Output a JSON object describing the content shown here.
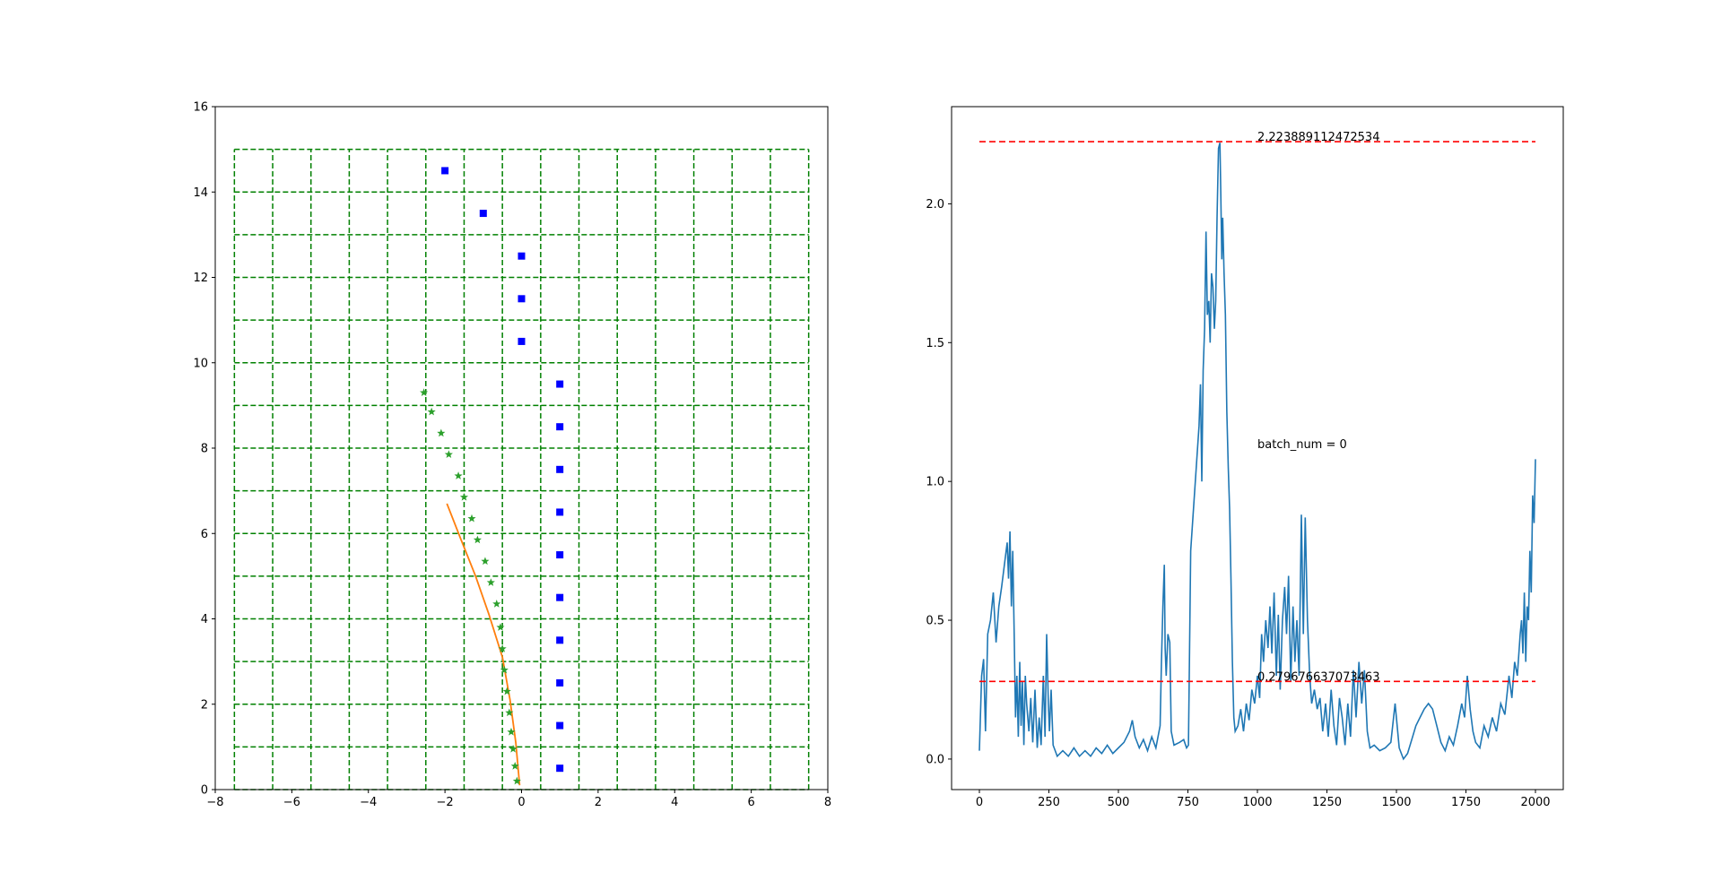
{
  "chart_data": [
    {
      "type": "scatter",
      "xlim": [
        -8,
        8
      ],
      "ylim": [
        0,
        16
      ],
      "x_ticks": [
        -8,
        -6,
        -4,
        -2,
        0,
        2,
        4,
        6,
        8
      ],
      "y_ticks": [
        0,
        2,
        4,
        6,
        8,
        10,
        12,
        14,
        16
      ],
      "x_tick_labels": [
        "−8",
        "−6",
        "−4",
        "−2",
        "0",
        "2",
        "4",
        "6",
        "8"
      ],
      "y_tick_labels": [
        "0",
        "2",
        "4",
        "6",
        "8",
        "10",
        "12",
        "14",
        "16"
      ],
      "grid": {
        "style": "dashed",
        "color": "#008000",
        "x_lines": [
          -7.5,
          -6.5,
          -5.5,
          -4.5,
          -3.5,
          -2.5,
          -1.5,
          -0.5,
          0.5,
          1.5,
          2.5,
          3.5,
          4.5,
          5.5,
          6.5,
          7.5
        ],
        "y_lines": [
          0,
          1,
          2,
          3,
          4,
          5,
          6,
          7,
          8,
          9,
          10,
          11,
          12,
          13,
          14,
          15
        ]
      },
      "square_points": {
        "color": "#0000ff",
        "marker": "square",
        "points": [
          [
            -2,
            14.5
          ],
          [
            -1,
            13.5
          ],
          [
            0,
            12.5
          ],
          [
            0,
            11.5
          ],
          [
            0,
            10.5
          ],
          [
            1,
            9.5
          ],
          [
            1,
            8.5
          ],
          [
            1,
            7.5
          ],
          [
            1,
            6.5
          ],
          [
            1,
            5.5
          ],
          [
            1,
            4.5
          ],
          [
            1,
            3.5
          ],
          [
            1,
            2.5
          ],
          [
            1,
            1.5
          ],
          [
            1,
            0.5
          ]
        ]
      },
      "star_points": {
        "color": "#2ca02c",
        "marker": "star",
        "points": [
          [
            -2.55,
            9.3
          ],
          [
            -2.35,
            8.85
          ],
          [
            -2.1,
            8.35
          ],
          [
            -1.9,
            7.85
          ],
          [
            -1.65,
            7.35
          ],
          [
            -1.5,
            6.85
          ],
          [
            -1.3,
            6.35
          ],
          [
            -1.15,
            5.85
          ],
          [
            -0.95,
            5.35
          ],
          [
            -0.8,
            4.85
          ],
          [
            -0.65,
            4.35
          ],
          [
            -0.55,
            3.8
          ],
          [
            -0.5,
            3.3
          ],
          [
            -0.45,
            2.8
          ],
          [
            -0.38,
            2.3
          ],
          [
            -0.32,
            1.8
          ],
          [
            -0.27,
            1.35
          ],
          [
            -0.22,
            0.95
          ],
          [
            -0.17,
            0.55
          ],
          [
            -0.12,
            0.2
          ]
        ]
      },
      "line": {
        "color": "#ff7f0e",
        "points": [
          [
            -1.95,
            6.7
          ],
          [
            -1.6,
            5.9
          ],
          [
            -1.2,
            5.0
          ],
          [
            -0.85,
            4.1
          ],
          [
            -0.5,
            3.1
          ],
          [
            -0.3,
            2.1
          ],
          [
            -0.15,
            1.1
          ],
          [
            -0.05,
            0.1
          ]
        ]
      }
    },
    {
      "type": "line",
      "xlim": [
        -100,
        2100
      ],
      "ylim": [
        -0.11,
        2.35
      ],
      "x_ticks": [
        0,
        250,
        500,
        750,
        1000,
        1250,
        1500,
        1750,
        2000
      ],
      "y_ticks": [
        0.0,
        0.5,
        1.0,
        1.5,
        2.0
      ],
      "x_tick_labels": [
        "0",
        "250",
        "500",
        "750",
        "1000",
        "1250",
        "1500",
        "1750",
        "2000"
      ],
      "y_tick_labels": [
        "0.0",
        "0.5",
        "1.0",
        "1.5",
        "2.0"
      ],
      "series_color": "#1f77b4",
      "series": [
        [
          0,
          0.03
        ],
        [
          8,
          0.3
        ],
        [
          15,
          0.36
        ],
        [
          22,
          0.1
        ],
        [
          30,
          0.45
        ],
        [
          40,
          0.5
        ],
        [
          50,
          0.6
        ],
        [
          60,
          0.42
        ],
        [
          70,
          0.55
        ],
        [
          80,
          0.62
        ],
        [
          90,
          0.7
        ],
        [
          100,
          0.78
        ],
        [
          105,
          0.65
        ],
        [
          110,
          0.82
        ],
        [
          115,
          0.55
        ],
        [
          120,
          0.75
        ],
        [
          125,
          0.45
        ],
        [
          130,
          0.15
        ],
        [
          135,
          0.3
        ],
        [
          140,
          0.08
        ],
        [
          145,
          0.35
        ],
        [
          150,
          0.12
        ],
        [
          155,
          0.28
        ],
        [
          160,
          0.05
        ],
        [
          165,
          0.3
        ],
        [
          170,
          0.2
        ],
        [
          178,
          0.1
        ],
        [
          185,
          0.22
        ],
        [
          192,
          0.06
        ],
        [
          200,
          0.25
        ],
        [
          208,
          0.04
        ],
        [
          215,
          0.15
        ],
        [
          222,
          0.05
        ],
        [
          230,
          0.3
        ],
        [
          236,
          0.08
        ],
        [
          242,
          0.45
        ],
        [
          248,
          0.2
        ],
        [
          252,
          0.1
        ],
        [
          258,
          0.25
        ],
        [
          265,
          0.05
        ],
        [
          280,
          0.01
        ],
        [
          300,
          0.03
        ],
        [
          320,
          0.01
        ],
        [
          340,
          0.04
        ],
        [
          360,
          0.01
        ],
        [
          380,
          0.03
        ],
        [
          400,
          0.01
        ],
        [
          420,
          0.04
        ],
        [
          440,
          0.02
        ],
        [
          460,
          0.05
        ],
        [
          480,
          0.02
        ],
        [
          500,
          0.04
        ],
        [
          520,
          0.06
        ],
        [
          540,
          0.1
        ],
        [
          550,
          0.14
        ],
        [
          560,
          0.08
        ],
        [
          575,
          0.04
        ],
        [
          590,
          0.07
        ],
        [
          605,
          0.03
        ],
        [
          620,
          0.08
        ],
        [
          635,
          0.04
        ],
        [
          650,
          0.12
        ],
        [
          655,
          0.35
        ],
        [
          660,
          0.55
        ],
        [
          665,
          0.7
        ],
        [
          668,
          0.4
        ],
        [
          672,
          0.3
        ],
        [
          678,
          0.45
        ],
        [
          685,
          0.42
        ],
        [
          690,
          0.1
        ],
        [
          700,
          0.05
        ],
        [
          720,
          0.06
        ],
        [
          735,
          0.07
        ],
        [
          745,
          0.04
        ],
        [
          752,
          0.05
        ],
        [
          755,
          0.3
        ],
        [
          760,
          0.75
        ],
        [
          770,
          0.9
        ],
        [
          780,
          1.05
        ],
        [
          790,
          1.2
        ],
        [
          795,
          1.35
        ],
        [
          800,
          1.0
        ],
        [
          805,
          1.4
        ],
        [
          810,
          1.55
        ],
        [
          815,
          1.9
        ],
        [
          820,
          1.6
        ],
        [
          825,
          1.65
        ],
        [
          830,
          1.5
        ],
        [
          835,
          1.75
        ],
        [
          840,
          1.7
        ],
        [
          845,
          1.55
        ],
        [
          850,
          1.65
        ],
        [
          855,
          1.95
        ],
        [
          860,
          2.2
        ],
        [
          865,
          2.22
        ],
        [
          868,
          2.05
        ],
        [
          872,
          1.8
        ],
        [
          875,
          1.95
        ],
        [
          880,
          1.75
        ],
        [
          885,
          1.6
        ],
        [
          890,
          1.25
        ],
        [
          895,
          1.05
        ],
        [
          900,
          0.9
        ],
        [
          905,
          0.65
        ],
        [
          910,
          0.35
        ],
        [
          915,
          0.15
        ],
        [
          920,
          0.1
        ],
        [
          930,
          0.12
        ],
        [
          940,
          0.18
        ],
        [
          950,
          0.1
        ],
        [
          960,
          0.2
        ],
        [
          970,
          0.14
        ],
        [
          980,
          0.25
        ],
        [
          990,
          0.2
        ],
        [
          1000,
          0.3
        ],
        [
          1008,
          0.22
        ],
        [
          1015,
          0.45
        ],
        [
          1022,
          0.35
        ],
        [
          1030,
          0.5
        ],
        [
          1038,
          0.4
        ],
        [
          1045,
          0.55
        ],
        [
          1052,
          0.38
        ],
        [
          1060,
          0.6
        ],
        [
          1068,
          0.3
        ],
        [
          1075,
          0.52
        ],
        [
          1082,
          0.25
        ],
        [
          1090,
          0.5
        ],
        [
          1098,
          0.62
        ],
        [
          1105,
          0.45
        ],
        [
          1112,
          0.66
        ],
        [
          1120,
          0.28
        ],
        [
          1128,
          0.55
        ],
        [
          1135,
          0.35
        ],
        [
          1142,
          0.5
        ],
        [
          1150,
          0.3
        ],
        [
          1158,
          0.88
        ],
        [
          1165,
          0.45
        ],
        [
          1172,
          0.87
        ],
        [
          1180,
          0.5
        ],
        [
          1188,
          0.3
        ],
        [
          1195,
          0.2
        ],
        [
          1205,
          0.25
        ],
        [
          1215,
          0.18
        ],
        [
          1225,
          0.22
        ],
        [
          1235,
          0.1
        ],
        [
          1245,
          0.2
        ],
        [
          1255,
          0.08
        ],
        [
          1265,
          0.25
        ],
        [
          1275,
          0.12
        ],
        [
          1285,
          0.05
        ],
        [
          1295,
          0.22
        ],
        [
          1305,
          0.15
        ],
        [
          1315,
          0.05
        ],
        [
          1325,
          0.2
        ],
        [
          1335,
          0.08
        ],
        [
          1345,
          0.32
        ],
        [
          1355,
          0.15
        ],
        [
          1365,
          0.35
        ],
        [
          1375,
          0.2
        ],
        [
          1385,
          0.32
        ],
        [
          1395,
          0.1
        ],
        [
          1405,
          0.04
        ],
        [
          1420,
          0.05
        ],
        [
          1440,
          0.03
        ],
        [
          1460,
          0.04
        ],
        [
          1480,
          0.06
        ],
        [
          1495,
          0.2
        ],
        [
          1510,
          0.04
        ],
        [
          1525,
          0.0
        ],
        [
          1540,
          0.02
        ],
        [
          1555,
          0.07
        ],
        [
          1570,
          0.12
        ],
        [
          1585,
          0.15
        ],
        [
          1600,
          0.18
        ],
        [
          1615,
          0.2
        ],
        [
          1630,
          0.18
        ],
        [
          1645,
          0.12
        ],
        [
          1660,
          0.06
        ],
        [
          1675,
          0.03
        ],
        [
          1690,
          0.08
        ],
        [
          1705,
          0.05
        ],
        [
          1720,
          0.12
        ],
        [
          1735,
          0.2
        ],
        [
          1745,
          0.15
        ],
        [
          1755,
          0.3
        ],
        [
          1765,
          0.18
        ],
        [
          1775,
          0.1
        ],
        [
          1785,
          0.06
        ],
        [
          1800,
          0.04
        ],
        [
          1815,
          0.12
        ],
        [
          1830,
          0.08
        ],
        [
          1845,
          0.15
        ],
        [
          1860,
          0.1
        ],
        [
          1875,
          0.2
        ],
        [
          1890,
          0.16
        ],
        [
          1905,
          0.3
        ],
        [
          1915,
          0.22
        ],
        [
          1925,
          0.35
        ],
        [
          1935,
          0.3
        ],
        [
          1945,
          0.45
        ],
        [
          1950,
          0.5
        ],
        [
          1955,
          0.38
        ],
        [
          1960,
          0.6
        ],
        [
          1965,
          0.35
        ],
        [
          1970,
          0.55
        ],
        [
          1975,
          0.5
        ],
        [
          1980,
          0.75
        ],
        [
          1985,
          0.6
        ],
        [
          1990,
          0.95
        ],
        [
          1995,
          0.85
        ],
        [
          2000,
          1.08
        ]
      ],
      "hlines": [
        {
          "y": 2.223889112472534,
          "label": "2.223889112472534",
          "color": "#ff0000",
          "style": "dashed"
        },
        {
          "y": 0.279676637073463,
          "label": "0.279676637073463",
          "color": "#ff0000",
          "style": "dashed"
        }
      ],
      "annotation": {
        "text": "batch_num = 0",
        "x": 1000,
        "y": 1.12
      }
    }
  ]
}
